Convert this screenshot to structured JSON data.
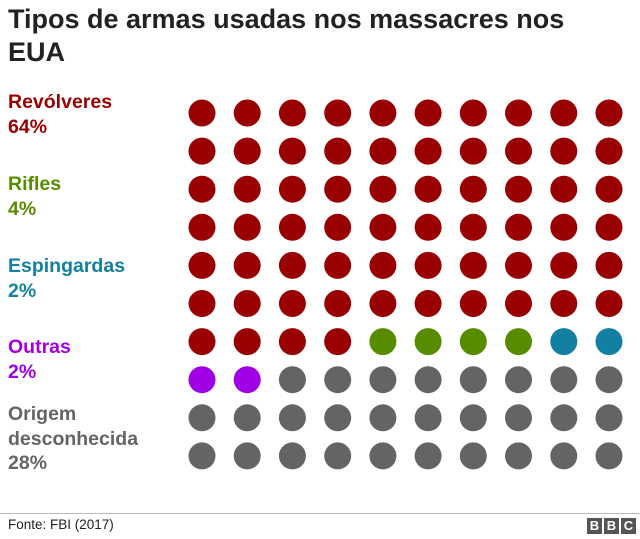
{
  "title": "Tipos de armas usadas nos massacres nos EUA",
  "source": "Fonte: FBI (2017)",
  "logo": {
    "name": "bbc-logo",
    "letters": [
      "B",
      "B",
      "C"
    ]
  },
  "chart_data": {
    "type": "waffle",
    "title": "Tipos de armas usadas nos massacres nos EUA",
    "grid": {
      "rows": 10,
      "cols": 10,
      "total": 100
    },
    "categories": [
      {
        "name": "Revólveres",
        "value_label": "64%",
        "count": 64,
        "color": "#990000"
      },
      {
        "name": "Rifles",
        "value_label": "4%",
        "count": 4,
        "color": "#588c00"
      },
      {
        "name": "Espingardas",
        "value_label": "2%",
        "count": 2,
        "color": "#1380a1"
      },
      {
        "name": "Outras",
        "value_label": "2%",
        "count": 2,
        "color": "#a000e6"
      },
      {
        "name": "Origem desconhecida",
        "name_lines": [
          "Origem",
          "desconhecida"
        ],
        "value_label": "28%",
        "count": 28,
        "color": "#646464"
      }
    ]
  }
}
